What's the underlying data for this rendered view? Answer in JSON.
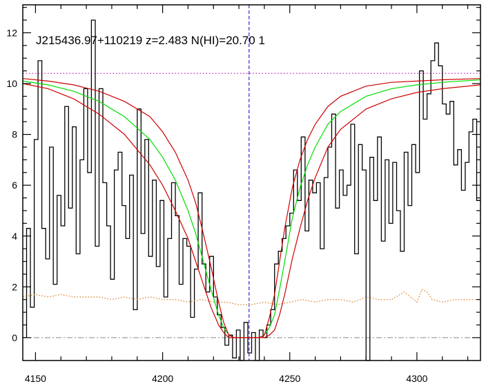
{
  "chart_data": {
    "type": "line",
    "title": "J215436.97+110219 z=2.483 N(HI)=20.70 1",
    "xlabel": "",
    "ylabel": "",
    "xlim": [
      4145,
      4325
    ],
    "ylim": [
      -0.9,
      13.1
    ],
    "grid": false,
    "legend": "none",
    "x_ticks": [
      4150,
      4200,
      4250,
      4300
    ],
    "y_ticks": [
      0,
      2,
      4,
      6,
      8,
      10,
      12
    ],
    "reference_lines": {
      "vertical_dashed_x": 4234,
      "continuum_dotted_y": 10.4,
      "zero_dashdot_y": 0
    },
    "colors": {
      "flux": "#000000",
      "fit": "#00dd00",
      "fit_bounds": "#cc0000",
      "error": "#dd8833",
      "continuum": "#cc33cc",
      "vertical_line": "#0000cc",
      "zero_line": "#888888"
    },
    "series": [
      {
        "role": "flux",
        "style": "histogram",
        "x": [
          4145.0,
          4146.5,
          4148.0,
          4149.5,
          4151.0,
          4152.5,
          4154.0,
          4155.5,
          4157.0,
          4158.5,
          4160.0,
          4161.5,
          4163.0,
          4164.5,
          4166.0,
          4167.5,
          4169.0,
          4170.5,
          4172.0,
          4173.5,
          4175.0,
          4176.5,
          4178.0,
          4179.5,
          4181.0,
          4182.5,
          4184.0,
          4185.5,
          4187.0,
          4188.5,
          4190.0,
          4191.5,
          4193.0,
          4194.5,
          4196.0,
          4197.5,
          4199.0,
          4200.5,
          4202.0,
          4203.5,
          4205.0,
          4206.5,
          4208.0,
          4209.5,
          4211.0,
          4212.5,
          4214.0,
          4215.5,
          4217.0,
          4218.5,
          4220.0,
          4221.5,
          4223.0,
          4224.5,
          4226.0,
          4227.5,
          4229.0,
          4230.5,
          4232.0,
          4233.5,
          4235.0,
          4236.5,
          4238.0,
          4239.5,
          4241.0,
          4242.5,
          4244.0,
          4245.5,
          4247.0,
          4248.5,
          4250.0,
          4251.5,
          4253.0,
          4254.5,
          4256.0,
          4257.5,
          4259.0,
          4260.5,
          4262.0,
          4263.5,
          4265.0,
          4266.5,
          4268.0,
          4269.5,
          4271.0,
          4272.5,
          4274.0,
          4275.5,
          4277.0,
          4278.5,
          4280.0,
          4281.5,
          4283.0,
          4284.5,
          4286.0,
          4287.5,
          4289.0,
          4290.5,
          4292.0,
          4293.5,
          4295.0,
          4296.5,
          4298.0,
          4299.5,
          4301.0,
          4302.5,
          4304.0,
          4305.5,
          4307.0,
          4308.5,
          4310.0,
          4311.5,
          4313.0,
          4314.5,
          4316.0,
          4317.5,
          4319.0,
          4320.5,
          4322.0,
          4323.5
        ],
        "y": [
          0.0,
          4.3,
          1.2,
          7.8,
          10.9,
          4.3,
          3.1,
          7.5,
          2.1,
          5.6,
          4.4,
          9.1,
          5.1,
          8.3,
          3.3,
          7.0,
          9.8,
          6.5,
          12.5,
          3.6,
          9.8,
          6.1,
          4.4,
          2.3,
          6.6,
          7.3,
          5.2,
          3.9,
          6.4,
          1.1,
          9.0,
          4.1,
          7.8,
          3.2,
          6.2,
          2.8,
          5.4,
          1.6,
          3.9,
          6.1,
          4.8,
          2.1,
          3.9,
          3.6,
          0.8,
          2.7,
          5.7,
          2.9,
          1.8,
          3.2,
          1.6,
          0.9,
          0.4,
          -0.3,
          0.1,
          -0.8,
          0.3,
          -1.0,
          0.6,
          -0.6,
          0.2,
          -0.9,
          0.3,
          0.0,
          0.5,
          1.1,
          2.9,
          3.4,
          3.9,
          4.4,
          4.9,
          6.6,
          5.4,
          7.9,
          4.2,
          6.2,
          5.7,
          6.1,
          3.5,
          6.3,
          7.5,
          8.8,
          5.1,
          6.6,
          5.6,
          6.0,
          8.4,
          3.3,
          7.6,
          6.6,
          -0.9,
          7.1,
          5.4,
          7.9,
          3.8,
          7.0,
          4.5,
          6.9,
          5.0,
          3.4,
          7.3,
          5.2,
          7.6,
          6.5,
          10.5,
          8.6,
          9.6,
          10.9,
          11.6,
          10.7,
          9.2,
          8.8,
          9.3,
          6.8,
          7.4,
          5.8,
          6.9,
          8.1,
          8.6,
          5.4
        ]
      },
      {
        "role": "error",
        "style": "dotted",
        "x": [
          4145,
          4150,
          4155,
          4160,
          4165,
          4170,
          4175,
          4180,
          4185,
          4190,
          4195,
          4200,
          4205,
          4210,
          4215,
          4220,
          4225,
          4230,
          4235,
          4240,
          4245,
          4250,
          4255,
          4260,
          4265,
          4270,
          4275,
          4280,
          4285,
          4290,
          4295,
          4300,
          4302,
          4304,
          4306,
          4310,
          4315,
          4320,
          4325
        ],
        "y": [
          1.6,
          1.7,
          1.6,
          1.7,
          1.6,
          1.6,
          1.6,
          1.5,
          1.6,
          1.5,
          1.6,
          1.5,
          1.5,
          1.4,
          1.5,
          1.4,
          1.4,
          1.3,
          1.3,
          1.4,
          1.3,
          1.4,
          1.5,
          1.4,
          1.5,
          1.5,
          1.4,
          1.6,
          1.5,
          1.5,
          1.8,
          1.4,
          1.9,
          1.8,
          1.5,
          1.4,
          1.5,
          1.5,
          1.5
        ]
      },
      {
        "role": "fit",
        "style": "line",
        "x": [
          4145,
          4155,
          4165,
          4175,
          4185,
          4195,
          4200,
          4205,
          4210,
          4213,
          4216,
          4219,
          4222,
          4224,
          4226,
          4228,
          4230,
          4232,
          4234,
          4236,
          4238,
          4240,
          4242,
          4244,
          4246,
          4248,
          4251,
          4254,
          4257,
          4260,
          4265,
          4270,
          4280,
          4290,
          4300,
          4310,
          4325
        ],
        "y": [
          10.1,
          9.95,
          9.7,
          9.3,
          8.7,
          7.8,
          7.1,
          6.2,
          5.0,
          4.1,
          3.0,
          1.9,
          0.9,
          0.4,
          0.1,
          0.0,
          0.0,
          0.0,
          0.0,
          0.0,
          0.0,
          0.1,
          0.4,
          0.9,
          1.9,
          3.0,
          4.7,
          5.9,
          6.8,
          7.5,
          8.4,
          8.9,
          9.5,
          9.8,
          9.95,
          10.05,
          10.15
        ]
      },
      {
        "role": "fit_upper",
        "style": "line",
        "x": [
          4145,
          4155,
          4165,
          4175,
          4185,
          4195,
          4200,
          4205,
          4210,
          4213,
          4216,
          4219,
          4222,
          4224,
          4226,
          4228,
          4230,
          4232,
          4234,
          4236,
          4238,
          4240,
          4242,
          4244,
          4246,
          4248,
          4251,
          4254,
          4257,
          4260,
          4265,
          4270,
          4280,
          4290,
          4300,
          4310,
          4325
        ],
        "y": [
          10.2,
          10.1,
          9.95,
          9.7,
          9.3,
          8.7,
          8.1,
          7.3,
          6.2,
          5.3,
          4.1,
          2.8,
          1.4,
          0.6,
          0.1,
          0.0,
          0.0,
          0.0,
          0.0,
          0.0,
          0.0,
          0.1,
          0.8,
          1.7,
          3.0,
          4.3,
          5.9,
          7.0,
          7.8,
          8.4,
          9.1,
          9.5,
          9.9,
          10.05,
          10.1,
          10.15,
          10.2
        ]
      },
      {
        "role": "fit_lower",
        "style": "line",
        "x": [
          4145,
          4155,
          4165,
          4175,
          4185,
          4195,
          4200,
          4205,
          4210,
          4213,
          4216,
          4219,
          4222,
          4224,
          4226,
          4228,
          4230,
          4232,
          4234,
          4236,
          4238,
          4240,
          4242,
          4244,
          4246,
          4248,
          4251,
          4254,
          4257,
          4260,
          4265,
          4270,
          4280,
          4290,
          4300,
          4310,
          4325
        ],
        "y": [
          10.0,
          9.8,
          9.4,
          8.8,
          8.0,
          6.8,
          6.0,
          5.0,
          3.9,
          3.0,
          2.1,
          1.2,
          0.5,
          0.2,
          0.0,
          0.0,
          0.0,
          0.0,
          0.0,
          0.0,
          0.0,
          0.0,
          0.1,
          0.3,
          0.9,
          1.7,
          3.1,
          4.3,
          5.4,
          6.3,
          7.5,
          8.2,
          9.0,
          9.4,
          9.65,
          9.8,
          9.95
        ]
      }
    ]
  }
}
